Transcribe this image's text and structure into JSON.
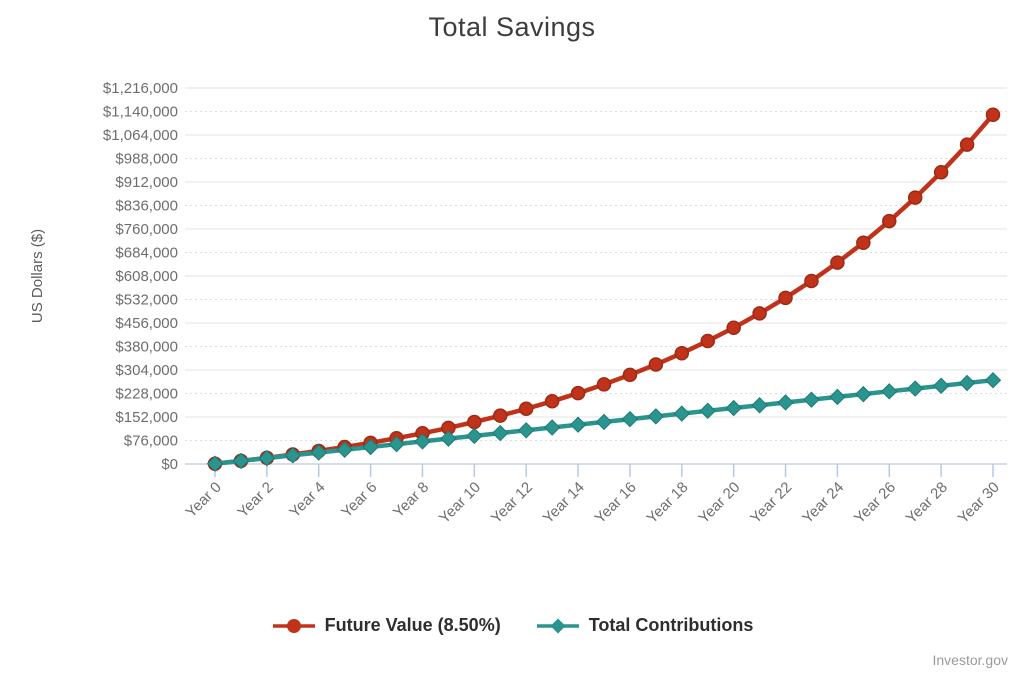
{
  "credit": "Investor.gov",
  "chart_data": {
    "type": "line",
    "title": "Total Savings",
    "xlabel": "",
    "ylabel": "US Dollars ($)",
    "grid": true,
    "legend_position": "bottom",
    "x": [
      0,
      1,
      2,
      3,
      4,
      5,
      6,
      7,
      8,
      9,
      10,
      11,
      12,
      13,
      14,
      15,
      16,
      17,
      18,
      19,
      20,
      21,
      22,
      23,
      24,
      25,
      26,
      27,
      28,
      29,
      30
    ],
    "x_ticks": [
      0,
      2,
      4,
      6,
      8,
      10,
      12,
      14,
      16,
      18,
      20,
      22,
      24,
      26,
      28,
      30
    ],
    "x_tick_labels": [
      "Year 0",
      "Year 2",
      "Year 4",
      "Year 6",
      "Year 8",
      "Year 10",
      "Year 12",
      "Year 14",
      "Year 16",
      "Year 18",
      "Year 20",
      "Year 22",
      "Year 24",
      "Year 26",
      "Year 28",
      "Year 30"
    ],
    "ylim": [
      0,
      1216000
    ],
    "y_ticks": [
      0,
      76000,
      152000,
      228000,
      304000,
      380000,
      456000,
      532000,
      608000,
      684000,
      760000,
      836000,
      912000,
      988000,
      1064000,
      1140000,
      1216000
    ],
    "y_tick_prefix": "$",
    "axis_color": "#c9d3e4",
    "tick_mark_color": "#b9c9e4",
    "gridline_solid_color": "#e3e3e3",
    "gridline_dashed_color": "#dcdcdc",
    "series": [
      {
        "name": "Future Value (8.50%)",
        "color": "#c0331a",
        "marker_stroke": "#9c2a14",
        "marker": "circle",
        "values": [
          1000,
          10085,
          19942,
          30638,
          42241,
          54832,
          68493,
          83315,
          99396,
          116845,
          135777,
          156319,
          178605,
          202786,
          229023,
          257490,
          288376,
          321889,
          358250,
          397701,
          440506,
          486948,
          537339,
          592013,
          651334,
          715697,
          785531,
          861301,
          943512,
          1032710,
          1129490
        ]
      },
      {
        "name": "Total Contributions",
        "color": "#2a948f",
        "marker_stroke": "#1f7a75",
        "marker": "diamond",
        "values": [
          1000,
          10000,
          19000,
          28000,
          37000,
          46000,
          55000,
          64000,
          73000,
          82000,
          91000,
          100000,
          109000,
          118000,
          127000,
          136000,
          145000,
          154000,
          163000,
          172000,
          181000,
          190000,
          199000,
          208000,
          217000,
          226000,
          235000,
          244000,
          253000,
          262000,
          271000
        ]
      }
    ]
  }
}
